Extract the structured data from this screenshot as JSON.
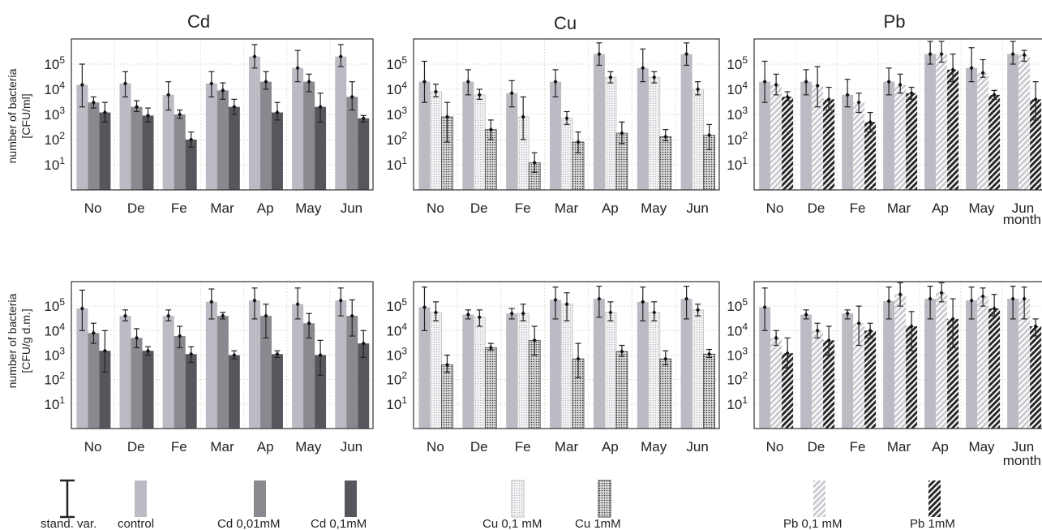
{
  "legend": {
    "stand_var": "stand. var.",
    "control": "control",
    "cd_low": "Cd 0,01mM",
    "cd_high": "Cd 0,1mM",
    "cu_low": "Cu 0,1 mM",
    "cu_high": "Cu 1mM",
    "pb_low": "Pb 0,1 mM",
    "pb_high": "Pb 1mM"
  },
  "colors": {
    "control": "#bbbcc3",
    "cd_low": "#888a8f",
    "cd_high": "#55575c",
    "frame": "#333333",
    "error_bar": "#222222",
    "grid": "#d4d4d4"
  },
  "y_labels": {
    "row1": [
      "number of bacteria",
      "[CFU/ml]"
    ],
    "row2": [
      "number of bacteria",
      "[CFU/g d.m.]"
    ]
  },
  "x_axis_label": "month",
  "chart_data": [
    {
      "type": "bar",
      "title": "Cd",
      "row": 1,
      "col": 1,
      "scale": "log",
      "ylim": [
        1,
        1000000
      ],
      "categories": [
        "No",
        "De",
        "Fe",
        "Mar",
        "Ap",
        "May",
        "Jun"
      ],
      "series": [
        {
          "name": "control",
          "values": [
            15000,
            17000,
            6000,
            17000,
            200000,
            70000,
            200000
          ],
          "err_low": [
            2000,
            5000,
            1500,
            5000,
            70000,
            20000,
            80000
          ],
          "err_high": [
            100000,
            50000,
            20000,
            50000,
            600000,
            350000,
            600000
          ]
        },
        {
          "name": "Cd 0,01mM",
          "values": [
            3000,
            2000,
            1000,
            9000,
            20000,
            20000,
            5000
          ],
          "err_low": [
            1800,
            1300,
            700,
            4000,
            10000,
            8000,
            1500
          ],
          "err_high": [
            5000,
            3500,
            1500,
            18000,
            50000,
            40000,
            20000
          ]
        },
        {
          "name": "Cd 0,1mM",
          "values": [
            1200,
            900,
            100,
            2000,
            1200,
            2000,
            700
          ],
          "err_low": [
            500,
            500,
            50,
            1000,
            600,
            500,
            500
          ],
          "err_high": [
            3000,
            1800,
            200,
            4000,
            3000,
            7000,
            900
          ]
        }
      ]
    },
    {
      "type": "bar",
      "title": "Cu",
      "row": 1,
      "col": 2,
      "scale": "log",
      "ylim": [
        1,
        1000000
      ],
      "categories": [
        "No",
        "De",
        "Fe",
        "Mar",
        "Ap",
        "May",
        "Jun"
      ],
      "series": [
        {
          "name": "control",
          "values": [
            20000,
            20000,
            7000,
            20000,
            250000,
            70000,
            250000
          ],
          "err_low": [
            3000,
            6000,
            2000,
            5000,
            90000,
            20000,
            90000
          ],
          "err_high": [
            130000,
            60000,
            22000,
            60000,
            700000,
            400000,
            700000
          ]
        },
        {
          "name": "Cu 0,1 mM",
          "values": [
            8000,
            6000,
            800,
            700,
            30000,
            30000,
            10000
          ],
          "err_low": [
            5000,
            4000,
            100,
            400,
            18000,
            18000,
            6000
          ],
          "err_high": [
            16000,
            10000,
            5000,
            1300,
            50000,
            50000,
            20000
          ]
        },
        {
          "name": "Cu 1mM",
          "values": [
            800,
            250,
            12,
            80,
            180,
            130,
            150
          ],
          "err_low": [
            80,
            100,
            5,
            30,
            70,
            90,
            40
          ],
          "err_high": [
            3000,
            600,
            30,
            200,
            500,
            250,
            400
          ]
        }
      ]
    },
    {
      "type": "bar",
      "title": "Pb",
      "row": 1,
      "col": 3,
      "scale": "log",
      "ylim": [
        1,
        1000000
      ],
      "categories": [
        "No",
        "De",
        "Fe",
        "Mar",
        "Ap",
        "May",
        "Jun"
      ],
      "series": [
        {
          "name": "control",
          "values": [
            20000,
            20000,
            6000,
            20000,
            250000,
            70000,
            250000
          ],
          "err_low": [
            3000,
            6000,
            2000,
            6000,
            100000,
            20000,
            100000
          ],
          "err_high": [
            130000,
            60000,
            25000,
            70000,
            800000,
            450000,
            800000
          ]
        },
        {
          "name": "Pb 0,1 mM",
          "values": [
            15000,
            14000,
            3000,
            15000,
            250000,
            45000,
            230000
          ],
          "err_low": [
            6000,
            2000,
            1200,
            7000,
            120000,
            30000,
            130000
          ],
          "err_high": [
            40000,
            80000,
            7000,
            40000,
            800000,
            150000,
            350000
          ]
        },
        {
          "name": "Pb 1mM",
          "values": [
            5000,
            4000,
            500,
            7000,
            60000,
            6000,
            4000
          ],
          "err_low": [
            3500,
            1500,
            200,
            4000,
            20000,
            4000,
            600
          ],
          "err_high": [
            8000,
            12000,
            1200,
            12000,
            250000,
            9000,
            20000
          ]
        }
      ]
    },
    {
      "type": "bar",
      "row": 2,
      "col": 1,
      "scale": "log",
      "ylim": [
        1,
        1000000
      ],
      "categories": [
        "No",
        "De",
        "Fe",
        "Mar",
        "Ap",
        "May",
        "Jun"
      ],
      "series": [
        {
          "name": "control",
          "values": [
            80000,
            40000,
            40000,
            150000,
            170000,
            120000,
            170000
          ],
          "err_low": [
            10000,
            25000,
            25000,
            30000,
            30000,
            30000,
            40000
          ],
          "err_high": [
            450000,
            70000,
            70000,
            500000,
            550000,
            550000,
            550000
          ]
        },
        {
          "name": "Cd 0,01mM",
          "values": [
            8000,
            5000,
            6000,
            40000,
            40000,
            20000,
            40000
          ],
          "err_low": [
            3000,
            2000,
            2000,
            30000,
            5000,
            5000,
            6000
          ],
          "err_high": [
            20000,
            12000,
            15000,
            55000,
            120000,
            50000,
            180000
          ]
        },
        {
          "name": "Cd 0,1mM",
          "values": [
            1500,
            1500,
            1100,
            1000,
            1100,
            1000,
            3000
          ],
          "err_low": [
            200,
            1000,
            500,
            700,
            800,
            150,
            800
          ],
          "err_high": [
            10000,
            2200,
            2200,
            1500,
            1500,
            4000,
            10000
          ]
        }
      ]
    },
    {
      "type": "bar",
      "row": 2,
      "col": 2,
      "scale": "log",
      "ylim": [
        1,
        1000000
      ],
      "categories": [
        "No",
        "De",
        "Fe",
        "Mar",
        "Ap",
        "May",
        "Jun"
      ],
      "series": [
        {
          "name": "control",
          "values": [
            90000,
            45000,
            50000,
            180000,
            200000,
            150000,
            200000
          ],
          "err_low": [
            10000,
            30000,
            30000,
            30000,
            35000,
            25000,
            30000
          ],
          "err_high": [
            600000,
            70000,
            80000,
            600000,
            650000,
            600000,
            650000
          ]
        },
        {
          "name": "Cu 0,1 mM",
          "values": [
            55000,
            35000,
            50000,
            120000,
            55000,
            55000,
            70000
          ],
          "err_low": [
            25000,
            15000,
            25000,
            25000,
            25000,
            25000,
            40000
          ],
          "err_high": [
            150000,
            70000,
            120000,
            350000,
            150000,
            150000,
            120000
          ]
        },
        {
          "name": "Cu 1mM",
          "values": [
            400,
            2000,
            4000,
            700,
            1400,
            700,
            1100
          ],
          "err_low": [
            200,
            1600,
            1000,
            120,
            900,
            400,
            800
          ],
          "err_high": [
            1000,
            3000,
            15000,
            3000,
            2500,
            1500,
            1700
          ]
        }
      ]
    },
    {
      "type": "bar",
      "row": 2,
      "col": 3,
      "scale": "log",
      "ylim": [
        1,
        1000000
      ],
      "categories": [
        "No",
        "De",
        "Fe",
        "Mar",
        "Ap",
        "May",
        "Jun"
      ],
      "series": [
        {
          "name": "control",
          "values": [
            90000,
            45000,
            50000,
            160000,
            200000,
            170000,
            200000
          ],
          "err_low": [
            10000,
            30000,
            30000,
            30000,
            30000,
            30000,
            30000
          ],
          "err_high": [
            550000,
            70000,
            70000,
            600000,
            650000,
            600000,
            650000
          ]
        },
        {
          "name": "Pb 0,1 mM",
          "values": [
            5000,
            10000,
            20000,
            300000,
            350000,
            250000,
            200000
          ],
          "err_low": [
            2500,
            5000,
            2500,
            100000,
            150000,
            100000,
            30000
          ],
          "err_high": [
            10000,
            20000,
            100000,
            900000,
            900000,
            550000,
            600000
          ]
        },
        {
          "name": "Pb 1mM",
          "values": [
            1200,
            4000,
            10000,
            15000,
            30000,
            80000,
            15000
          ],
          "err_low": [
            300,
            1000,
            5000,
            1500,
            2000,
            40000,
            6000
          ],
          "err_high": [
            5000,
            15000,
            20000,
            60000,
            200000,
            300000,
            30000
          ]
        }
      ]
    }
  ]
}
